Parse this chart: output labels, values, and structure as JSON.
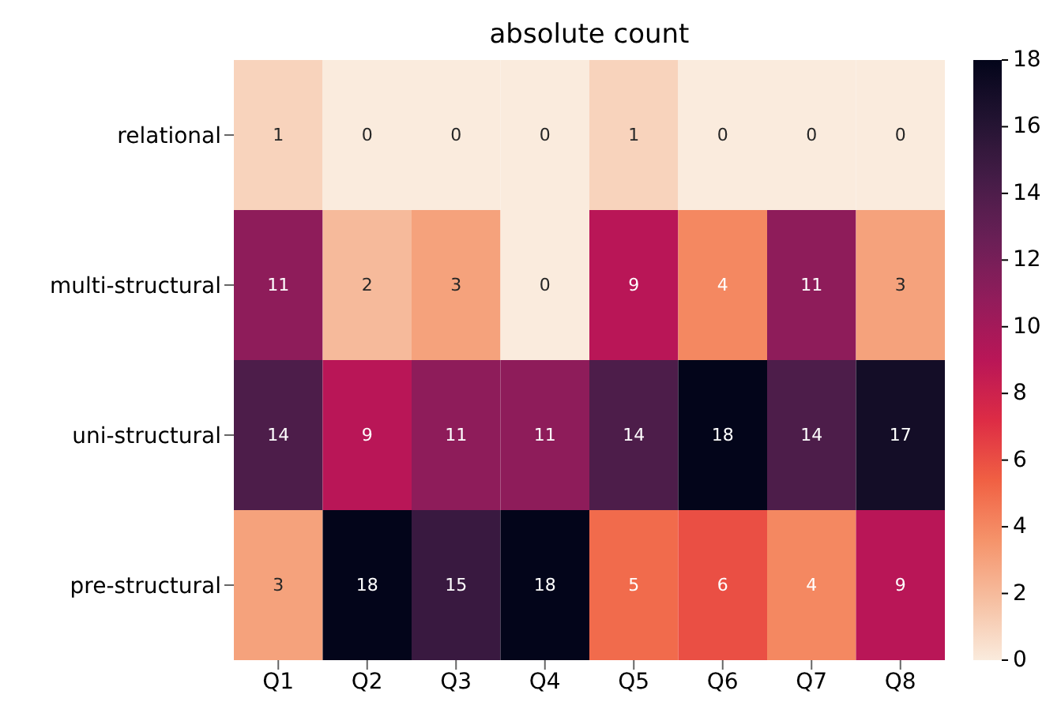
{
  "chart_data": {
    "type": "heatmap",
    "title": "absolute count",
    "categories": [
      "Q1",
      "Q2",
      "Q3",
      "Q4",
      "Q5",
      "Q6",
      "Q7",
      "Q8"
    ],
    "y_categories": [
      "relational",
      "multi-structural",
      "uni-structural",
      "pre-structural"
    ],
    "cells": [
      [
        1,
        0,
        0,
        0,
        1,
        0,
        0,
        0
      ],
      [
        11,
        2,
        3,
        0,
        9,
        4,
        11,
        3
      ],
      [
        14,
        9,
        11,
        11,
        14,
        18,
        14,
        17
      ],
      [
        3,
        18,
        15,
        18,
        5,
        6,
        4,
        9
      ]
    ],
    "data_labels": true,
    "clim": [
      0,
      18
    ],
    "cticks": [
      0,
      2,
      4,
      6,
      8,
      10,
      12,
      14,
      16,
      18
    ]
  }
}
